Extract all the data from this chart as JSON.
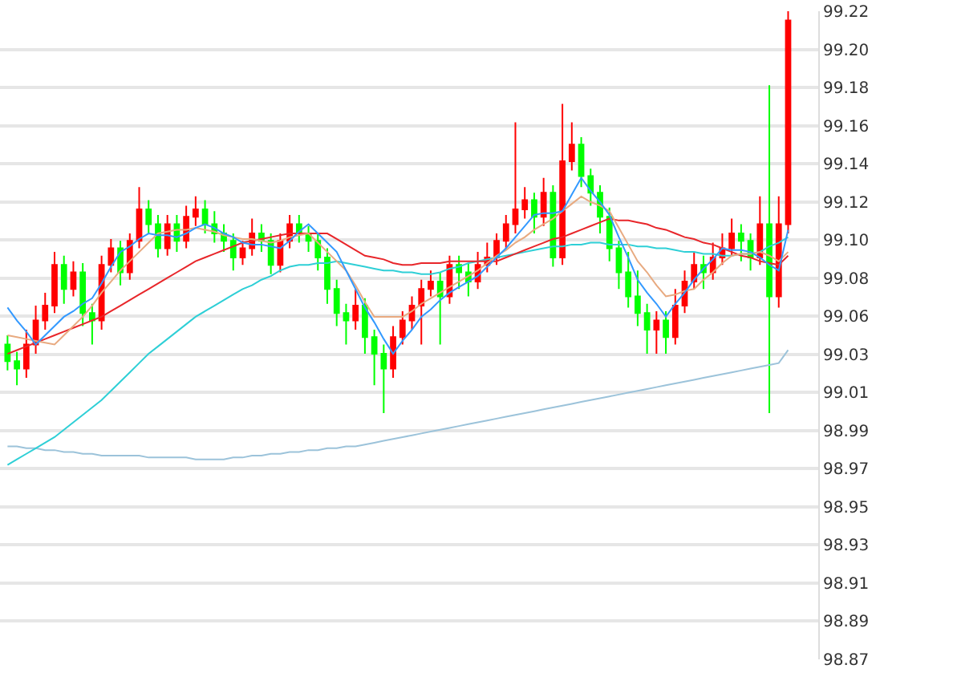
{
  "chart_data": {
    "type": "candlestick",
    "categories": [
      null,
      null,
      null,
      null,
      null,
      null,
      null,
      null,
      null,
      null,
      null,
      null,
      null,
      null,
      null,
      null,
      null,
      null,
      null,
      null,
      null,
      null,
      null,
      null,
      null,
      null,
      null,
      null,
      null,
      null,
      null,
      null,
      null,
      null,
      null,
      null,
      null,
      null,
      null,
      null,
      null,
      null,
      null,
      null,
      null,
      null,
      null,
      null,
      null,
      null,
      null,
      null,
      null,
      null,
      null,
      null,
      null,
      null,
      null,
      null,
      null,
      null,
      null,
      null,
      null,
      null,
      null,
      null,
      null,
      null,
      null,
      null,
      null,
      null,
      null,
      null,
      null,
      null,
      null,
      null,
      null,
      null,
      null,
      null
    ],
    "ohlc": [
      [
        99.04,
        99.045,
        99.026,
        99.031
      ],
      [
        99.031,
        99.036,
        99.018,
        99.027
      ],
      [
        99.027,
        99.048,
        99.022,
        99.04
      ],
      [
        99.04,
        99.061,
        99.035,
        99.053
      ],
      [
        99.053,
        99.068,
        99.048,
        99.061
      ],
      [
        99.061,
        99.09,
        99.057,
        99.083
      ],
      [
        99.083,
        99.088,
        99.062,
        99.07
      ],
      [
        99.07,
        99.085,
        99.066,
        99.079
      ],
      [
        99.079,
        99.084,
        99.05,
        99.057
      ],
      [
        99.057,
        99.062,
        99.04,
        99.053
      ],
      [
        99.053,
        99.088,
        99.048,
        99.083
      ],
      [
        99.083,
        99.097,
        99.079,
        99.092
      ],
      [
        99.092,
        99.096,
        99.072,
        99.079
      ],
      [
        99.079,
        99.1,
        99.075,
        99.096
      ],
      [
        99.096,
        99.125,
        99.092,
        99.113
      ],
      [
        99.113,
        99.118,
        99.1,
        99.105
      ],
      [
        99.105,
        99.11,
        99.087,
        99.092
      ],
      [
        99.092,
        99.11,
        99.088,
        99.105
      ],
      [
        99.105,
        99.11,
        99.09,
        99.096
      ],
      [
        99.096,
        99.115,
        99.092,
        99.109
      ],
      [
        99.109,
        99.12,
        99.104,
        99.113
      ],
      [
        99.113,
        99.118,
        99.1,
        99.105
      ],
      [
        99.105,
        99.112,
        99.095,
        99.1
      ],
      [
        99.1,
        99.105,
        99.09,
        99.096
      ],
      [
        99.096,
        99.1,
        99.08,
        99.087
      ],
      [
        99.087,
        99.096,
        99.083,
        99.092
      ],
      [
        99.092,
        99.108,
        99.088,
        99.1
      ],
      [
        99.1,
        99.105,
        99.09,
        99.096
      ],
      [
        99.096,
        99.1,
        99.078,
        99.083
      ],
      [
        99.083,
        99.1,
        99.079,
        99.096
      ],
      [
        99.096,
        99.11,
        99.092,
        99.105
      ],
      [
        99.105,
        99.11,
        99.095,
        99.1
      ],
      [
        99.1,
        99.104,
        99.09,
        99.096
      ],
      [
        99.096,
        99.1,
        99.08,
        99.087
      ],
      [
        99.087,
        99.092,
        99.062,
        99.07
      ],
      [
        99.07,
        99.075,
        99.05,
        99.057
      ],
      [
        99.057,
        99.062,
        99.04,
        99.053
      ],
      [
        99.053,
        99.07,
        99.048,
        99.061
      ],
      [
        99.061,
        99.065,
        99.035,
        99.044
      ],
      [
        99.044,
        99.048,
        99.018,
        99.035
      ],
      [
        99.035,
        99.04,
        99.003,
        99.027
      ],
      [
        99.027,
        99.05,
        99.022,
        99.044
      ],
      [
        99.044,
        99.058,
        99.04,
        99.053
      ],
      [
        99.053,
        99.066,
        99.048,
        99.061
      ],
      [
        99.061,
        99.075,
        99.04,
        99.07
      ],
      [
        99.07,
        99.08,
        99.066,
        99.074
      ],
      [
        99.074,
        99.079,
        99.04,
        99.066
      ],
      [
        99.066,
        99.088,
        99.062,
        99.083
      ],
      [
        99.083,
        99.088,
        99.07,
        99.079
      ],
      [
        99.079,
        99.084,
        99.066,
        99.074
      ],
      [
        99.074,
        99.09,
        99.07,
        99.083
      ],
      [
        99.083,
        99.095,
        99.079,
        99.087
      ],
      [
        99.087,
        99.1,
        99.083,
        99.096
      ],
      [
        99.096,
        99.11,
        99.092,
        99.105
      ],
      [
        99.105,
        99.16,
        99.1,
        99.113
      ],
      [
        99.113,
        99.125,
        99.108,
        99.118
      ],
      [
        99.118,
        99.122,
        99.1,
        99.109
      ],
      [
        99.109,
        99.13,
        99.104,
        99.122
      ],
      [
        99.122,
        99.126,
        99.082,
        99.087
      ],
      [
        99.087,
        99.17,
        99.083,
        99.139
      ],
      [
        99.139,
        99.16,
        99.134,
        99.148
      ],
      [
        99.148,
        99.152,
        99.125,
        99.131
      ],
      [
        99.131,
        99.135,
        99.115,
        99.122
      ],
      [
        99.122,
        99.126,
        99.1,
        99.109
      ],
      [
        99.109,
        99.114,
        99.085,
        99.092
      ],
      [
        99.092,
        99.096,
        99.07,
        99.079
      ],
      [
        99.079,
        99.09,
        99.06,
        99.066
      ],
      [
        99.066,
        99.08,
        99.05,
        99.057
      ],
      [
        99.057,
        99.062,
        99.035,
        99.048
      ],
      [
        99.048,
        99.058,
        99.035,
        99.053
      ],
      [
        99.053,
        99.058,
        99.035,
        99.044
      ],
      [
        99.044,
        99.07,
        99.04,
        99.061
      ],
      [
        99.061,
        99.08,
        99.057,
        99.074
      ],
      [
        99.074,
        99.09,
        99.07,
        99.083
      ],
      [
        99.083,
        99.088,
        99.07,
        99.079
      ],
      [
        99.079,
        99.095,
        99.075,
        99.087
      ],
      [
        99.087,
        99.1,
        99.083,
        99.092
      ],
      [
        99.092,
        99.108,
        99.088,
        99.1
      ],
      [
        99.1,
        99.105,
        99.085,
        99.096
      ],
      [
        99.096,
        99.1,
        99.08,
        99.087
      ],
      [
        99.087,
        99.12,
        99.083,
        99.105
      ],
      [
        99.105,
        99.18,
        99.003,
        99.066
      ],
      [
        99.066,
        99.12,
        99.06,
        99.105
      ],
      [
        99.105,
        99.22,
        99.1,
        99.215
      ]
    ],
    "colors": [
      "#00ff00",
      "#00ff00",
      "#ff0000",
      "#ff0000",
      "#ff0000",
      "#ff0000",
      "#00ff00",
      "#ff0000",
      "#00ff00",
      "#00ff00",
      "#ff0000",
      "#ff0000",
      "#00ff00",
      "#ff0000",
      "#ff0000",
      "#00ff00",
      "#00ff00",
      "#ff0000",
      "#00ff00",
      "#ff0000",
      "#ff0000",
      "#00ff00",
      "#00ff00",
      "#00ff00",
      "#00ff00",
      "#ff0000",
      "#ff0000",
      "#00ff00",
      "#00ff00",
      "#ff0000",
      "#ff0000",
      "#00ff00",
      "#00ff00",
      "#00ff00",
      "#00ff00",
      "#00ff00",
      "#00ff00",
      "#ff0000",
      "#00ff00",
      "#00ff00",
      "#00ff00",
      "#ff0000",
      "#ff0000",
      "#ff0000",
      "#ff0000",
      "#ff0000",
      "#00ff00",
      "#ff0000",
      "#00ff00",
      "#00ff00",
      "#ff0000",
      "#ff0000",
      "#ff0000",
      "#ff0000",
      "#ff0000",
      "#ff0000",
      "#00ff00",
      "#ff0000",
      "#00ff00",
      "#ff0000",
      "#ff0000",
      "#00ff00",
      "#00ff00",
      "#00ff00",
      "#00ff00",
      "#00ff00",
      "#00ff00",
      "#00ff00",
      "#00ff00",
      "#ff0000",
      "#00ff00",
      "#ff0000",
      "#ff0000",
      "#ff0000",
      "#00ff00",
      "#ff0000",
      "#ff0000",
      "#ff0000",
      "#00ff00",
      "#00ff00",
      "#ff0000",
      "#00ff00",
      "#ff0000",
      "#ff0000"
    ],
    "series": [
      {
        "type": "line",
        "color": "#9cc3da",
        "values": [
          98.985,
          98.985,
          98.984,
          98.984,
          98.983,
          98.983,
          98.982,
          98.982,
          98.981,
          98.981,
          98.98,
          98.98,
          98.98,
          98.98,
          98.98,
          98.979,
          98.979,
          98.979,
          98.979,
          98.979,
          98.978,
          98.978,
          98.978,
          98.978,
          98.979,
          98.979,
          98.98,
          98.98,
          98.981,
          98.981,
          98.982,
          98.982,
          98.983,
          98.983,
          98.984,
          98.984,
          98.985,
          98.985,
          98.986,
          98.987,
          98.988,
          98.989,
          98.99,
          98.991,
          98.992,
          98.993,
          98.994,
          98.995,
          98.996,
          98.997,
          98.998,
          98.999,
          99.0,
          99.001,
          99.002,
          99.003,
          99.004,
          99.005,
          99.006,
          99.007,
          99.008,
          99.009,
          99.01,
          99.011,
          99.012,
          99.013,
          99.014,
          99.015,
          99.016,
          99.017,
          99.018,
          99.019,
          99.02,
          99.021,
          99.022,
          99.023,
          99.024,
          99.025,
          99.026,
          99.027,
          99.028,
          99.029,
          99.03,
          99.037
        ]
      },
      {
        "type": "line",
        "color": "#2ecfd6",
        "values": [
          98.975,
          98.978,
          98.981,
          98.984,
          98.987,
          98.99,
          98.994,
          98.998,
          99.002,
          99.006,
          99.01,
          99.015,
          99.02,
          99.025,
          99.03,
          99.035,
          99.039,
          99.043,
          99.047,
          99.051,
          99.055,
          99.058,
          99.061,
          99.064,
          99.067,
          99.07,
          99.072,
          99.075,
          99.077,
          99.08,
          99.082,
          99.083,
          99.083,
          99.084,
          99.084,
          99.085,
          99.084,
          99.083,
          99.082,
          99.081,
          99.08,
          99.08,
          99.079,
          99.079,
          99.078,
          99.078,
          99.079,
          99.081,
          99.082,
          99.084,
          99.085,
          99.086,
          99.087,
          99.088,
          99.089,
          99.09,
          99.091,
          99.092,
          99.093,
          99.093,
          99.094,
          99.094,
          99.095,
          99.095,
          99.094,
          99.094,
          99.094,
          99.093,
          99.093,
          99.092,
          99.092,
          99.091,
          99.09,
          99.09,
          99.089,
          99.089,
          99.088,
          99.088,
          99.089,
          99.089,
          99.09,
          99.093,
          99.095,
          99.098
        ]
      },
      {
        "type": "line",
        "color": "#e8262a",
        "values": [
          99.035,
          99.037,
          99.039,
          99.041,
          99.043,
          99.045,
          99.047,
          99.049,
          99.051,
          99.053,
          99.055,
          99.058,
          99.061,
          99.064,
          99.067,
          99.07,
          99.073,
          99.076,
          99.079,
          99.082,
          99.085,
          99.087,
          99.089,
          99.091,
          99.093,
          99.095,
          99.096,
          99.097,
          99.098,
          99.099,
          99.1,
          99.1,
          99.1,
          99.1,
          99.1,
          99.097,
          99.094,
          99.091,
          99.088,
          99.087,
          99.086,
          99.084,
          99.083,
          99.083,
          99.084,
          99.084,
          99.084,
          99.085,
          99.085,
          99.085,
          99.085,
          99.085,
          99.085,
          99.087,
          99.089,
          99.091,
          99.093,
          99.095,
          99.097,
          99.098,
          99.1,
          99.102,
          99.104,
          99.106,
          99.108,
          99.107,
          99.107,
          99.106,
          99.105,
          99.103,
          99.102,
          99.1,
          99.098,
          99.097,
          99.095,
          99.094,
          99.092,
          99.09,
          99.088,
          99.087,
          99.085,
          99.084,
          99.083,
          99.088
        ]
      },
      {
        "type": "line",
        "color": "#e8aa80",
        "values": [
          99.045,
          99.044,
          99.043,
          99.042,
          99.041,
          99.04,
          99.045,
          99.05,
          99.055,
          99.061,
          99.068,
          99.074,
          99.08,
          99.085,
          99.09,
          99.095,
          99.1,
          99.101,
          99.102,
          99.102,
          99.103,
          99.102,
          99.101,
          99.099,
          99.098,
          99.097,
          99.097,
          99.096,
          99.095,
          99.096,
          99.098,
          99.099,
          99.1,
          99.095,
          99.09,
          99.085,
          99.08,
          99.072,
          99.063,
          99.055,
          99.055,
          99.055,
          99.055,
          99.058,
          99.062,
          99.065,
          99.068,
          99.071,
          99.074,
          99.077,
          99.08,
          99.084,
          99.088,
          99.091,
          99.095,
          99.098,
          99.102,
          99.105,
          99.108,
          99.112,
          99.116,
          99.12,
          99.117,
          99.115,
          99.112,
          99.103,
          99.094,
          99.085,
          99.079,
          99.072,
          99.066,
          99.067,
          99.069,
          99.07,
          99.075,
          99.079,
          99.084,
          99.088,
          99.089,
          99.089,
          99.09,
          99.088,
          99.085,
          99.09
        ]
      },
      {
        "type": "line",
        "color": "#3399ff",
        "values": [
          99.06,
          99.053,
          99.047,
          99.04,
          99.045,
          99.05,
          99.055,
          99.058,
          99.062,
          99.065,
          99.073,
          99.082,
          99.09,
          99.093,
          99.097,
          99.1,
          99.099,
          99.099,
          99.098,
          99.1,
          99.103,
          99.105,
          99.103,
          99.1,
          99.098,
          99.095,
          99.094,
          99.094,
          99.093,
          99.092,
          99.096,
          99.101,
          99.105,
          99.1,
          99.095,
          99.09,
          99.08,
          99.07,
          99.06,
          99.052,
          99.043,
          99.035,
          99.042,
          99.048,
          99.055,
          99.059,
          99.064,
          99.068,
          99.071,
          99.074,
          99.077,
          99.082,
          99.087,
          99.092,
          99.098,
          99.104,
          99.11,
          99.111,
          99.111,
          99.112,
          99.121,
          99.13,
          99.123,
          99.117,
          99.11,
          99.098,
          99.087,
          99.075,
          99.068,
          99.062,
          99.055,
          99.062,
          99.068,
          99.075,
          99.081,
          99.086,
          99.092,
          99.091,
          99.091,
          99.09,
          99.087,
          99.083,
          99.08,
          99.102
        ]
      }
    ],
    "ylim": [
      98.87,
      99.22
    ],
    "yticks": [
      {
        "value": 98.87,
        "label": "98.87"
      },
      {
        "value": 98.8906,
        "label": "98.89"
      },
      {
        "value": 98.9112,
        "label": "98.91"
      },
      {
        "value": 98.9318,
        "label": "98.93"
      },
      {
        "value": 98.9524,
        "label": "98.95"
      },
      {
        "value": 98.9729,
        "label": "98.97"
      },
      {
        "value": 98.9935,
        "label": "98.99"
      },
      {
        "value": 99.0141,
        "label": "99.01"
      },
      {
        "value": 99.0347,
        "label": "99.03"
      },
      {
        "value": 99.0553,
        "label": "99.06"
      },
      {
        "value": 99.0759,
        "label": "99.08"
      },
      {
        "value": 99.0965,
        "label": "99.10"
      },
      {
        "value": 99.1171,
        "label": "99.12"
      },
      {
        "value": 99.1376,
        "label": "99.14"
      },
      {
        "value": 99.1582,
        "label": "99.16"
      },
      {
        "value": 99.1788,
        "label": "99.18"
      },
      {
        "value": 99.1994,
        "label": "99.20"
      },
      {
        "value": 99.22,
        "label": "99.22"
      }
    ],
    "grid": "y",
    "tick_labels": "y"
  }
}
